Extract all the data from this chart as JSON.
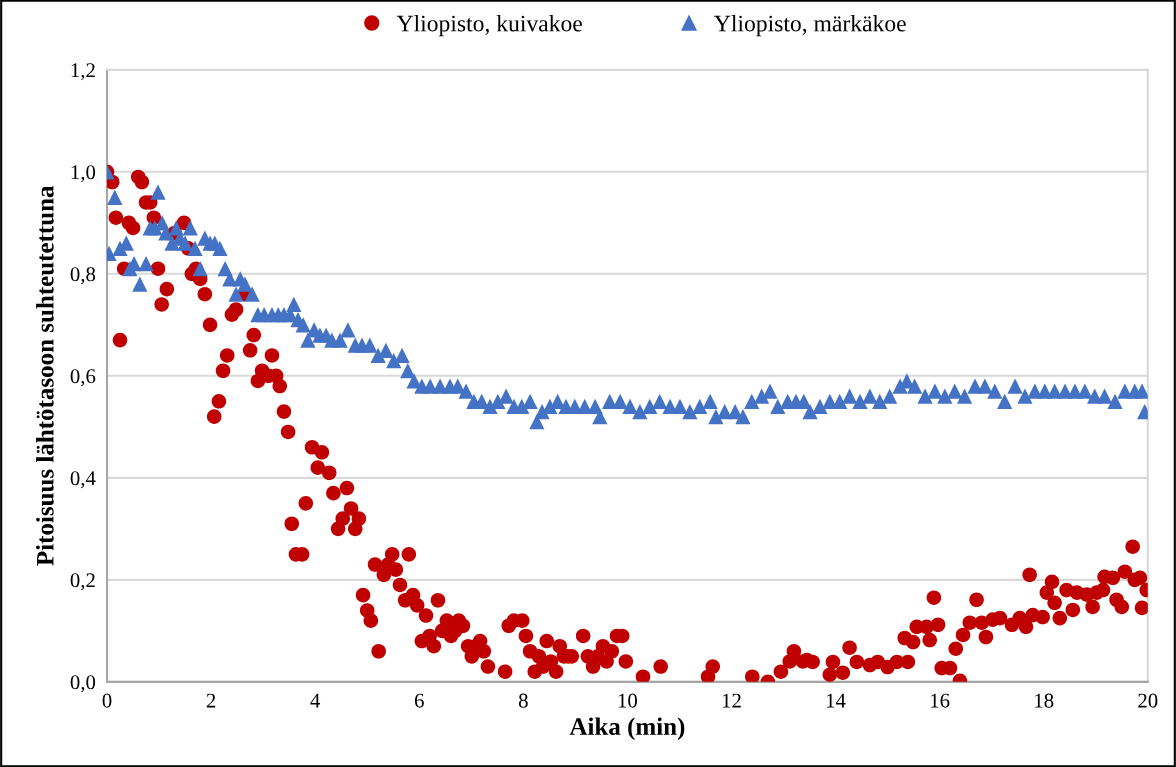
{
  "chart_data": {
    "type": "scatter",
    "xlabel": "Aika (min)",
    "ylabel": "Pitoisuus lähtötasoon suhteutettuna",
    "xlim": [
      0,
      20
    ],
    "xticks": [
      0,
      2,
      4,
      6,
      8,
      10,
      12,
      14,
      16,
      18,
      20
    ],
    "ylim": [
      0,
      1.2
    ],
    "yticks": [
      {
        "value": 0,
        "label": "0,0"
      },
      {
        "value": 0.2,
        "label": "0,2"
      },
      {
        "value": 0.4,
        "label": "0,4"
      },
      {
        "value": 0.6,
        "label": "0,6"
      },
      {
        "value": 0.8,
        "label": "0,8"
      },
      {
        "value": 1.0,
        "label": "1,0"
      },
      {
        "value": 1.2,
        "label": "1,2"
      }
    ],
    "grid": "y",
    "legend": "top",
    "series": [
      {
        "name": "Yliopisto, kuivakoe",
        "color": "#c00000",
        "marker": "circle",
        "x": [
          0,
          0.1,
          0.17,
          0.25,
          0.33,
          0.42,
          0.5,
          0.6,
          0.67,
          0.75,
          0.83,
          0.9,
          0.98,
          1.05,
          1.15,
          1.3,
          1.48,
          1.56,
          1.63,
          1.71,
          1.79,
          1.88,
          1.98,
          2.06,
          2.15,
          2.23,
          2.31,
          2.4,
          2.48,
          2.65,
          2.75,
          2.82,
          2.9,
          2.98,
          3.1,
          3.17,
          3.25,
          3.32,
          3.4,
          3.48,
          3.55,
          3.63,
          3.75,
          3.82,
          3.94,
          4.05,
          4.13,
          4.27,
          4.35,
          4.44,
          4.53,
          4.61,
          4.69,
          4.77,
          4.84,
          4.92,
          5.0,
          5.07,
          5.15,
          5.22,
          5.32,
          5.4,
          5.48,
          5.55,
          5.63,
          5.73,
          5.8,
          5.88,
          5.96,
          6.05,
          6.13,
          6.2,
          6.28,
          6.36,
          6.44,
          6.53,
          6.61,
          6.69,
          6.76,
          6.84,
          6.94,
          7.01,
          7.09,
          7.17,
          7.24,
          7.32,
          7.65,
          7.72,
          7.82,
          7.98,
          8.05,
          8.13,
          8.22,
          8.3,
          8.38,
          8.45,
          8.53,
          8.63,
          8.7,
          8.78,
          8.86,
          8.93,
          9.15,
          9.24,
          9.34,
          9.43,
          9.53,
          9.6,
          9.7,
          9.8,
          9.9,
          9.97,
          10.3,
          10.64,
          11.55,
          11.64,
          12.4,
          12.7,
          12.95,
          13.12,
          13.2,
          13.37,
          13.45,
          13.56,
          13.89,
          13.95,
          14.14,
          14.27,
          14.41,
          14.66,
          14.81,
          15.0,
          15.18,
          15.39,
          15.33,
          15.49,
          15.56,
          15.75,
          15.81,
          15.97,
          15.89,
          16.04,
          16.2,
          16.31,
          16.39,
          16.45,
          16.58,
          16.71,
          16.81,
          16.89,
          17.02,
          17.16,
          17.39,
          17.54,
          17.66,
          17.73,
          17.79,
          17.98,
          18.06,
          18.16,
          18.21,
          18.31,
          18.44,
          18.56,
          18.64,
          18.83,
          18.94,
          19.02,
          19.14,
          19.17,
          19.33,
          19.4,
          19.5,
          19.56,
          19.71,
          19.75,
          19.85,
          19.98,
          19.89
        ],
        "values": [
          1.0,
          0.98,
          0.91,
          0.67,
          0.81,
          0.9,
          0.89,
          0.99,
          0.98,
          0.94,
          0.94,
          0.91,
          0.81,
          0.74,
          0.77,
          0.88,
          0.9,
          0.85,
          0.8,
          0.81,
          0.79,
          0.76,
          0.7,
          0.52,
          0.55,
          0.61,
          0.64,
          0.72,
          0.73,
          0.76,
          0.65,
          0.68,
          0.59,
          0.61,
          0.6,
          0.64,
          0.6,
          0.58,
          0.53,
          0.49,
          0.31,
          0.25,
          0.25,
          0.35,
          0.46,
          0.42,
          0.45,
          0.41,
          0.37,
          0.3,
          0.32,
          0.38,
          0.34,
          0.3,
          0.32,
          0.17,
          0.14,
          0.12,
          0.23,
          0.06,
          0.21,
          0.23,
          0.25,
          0.22,
          0.19,
          0.16,
          0.25,
          0.17,
          0.15,
          0.08,
          0.13,
          0.09,
          0.07,
          0.16,
          0.1,
          0.12,
          0.09,
          0.1,
          0.12,
          0.11,
          0.07,
          0.05,
          0.07,
          0.08,
          0.06,
          0.03,
          0.02,
          0.11,
          0.12,
          0.12,
          0.09,
          0.06,
          0.02,
          0.05,
          0.03,
          0.08,
          0.04,
          0.02,
          0.07,
          0.05,
          0.05,
          0.05,
          0.09,
          0.05,
          0.03,
          0.05,
          0.07,
          0.04,
          0.06,
          0.09,
          0.09,
          0.04,
          0.01,
          0.03,
          0.01,
          0.03,
          0.01,
          0.0,
          0.02,
          0.04,
          0.06,
          0.04,
          0.043,
          0.039,
          0.014,
          0.039,
          0.018,
          0.067,
          0.039,
          0.033,
          0.039,
          0.029,
          0.039,
          0.039,
          0.086,
          0.078,
          0.108,
          0.108,
          0.082,
          0.112,
          0.165,
          0.027,
          0.027,
          0.065,
          0.002,
          0.092,
          0.116,
          0.161,
          0.116,
          0.088,
          0.122,
          0.125,
          0.112,
          0.125,
          0.108,
          0.21,
          0.131,
          0.127,
          0.175,
          0.196,
          0.155,
          0.125,
          0.18,
          0.141,
          0.175,
          0.171,
          0.147,
          0.175,
          0.18,
          0.206,
          0.204,
          0.161,
          0.147,
          0.216,
          0.265,
          0.2,
          0.204,
          0.18,
          0.145
        ]
      },
      {
        "name": "Yliopisto, märkäkoe",
        "color": "#4472c4",
        "marker": "triangle",
        "x": [
          0,
          0.04,
          0.15,
          0.25,
          0.37,
          0.44,
          0.52,
          0.63,
          0.75,
          0.83,
          0.92,
          0.98,
          1.06,
          1.13,
          1.25,
          1.33,
          1.4,
          1.5,
          1.6,
          1.69,
          1.79,
          1.88,
          1.98,
          2.07,
          2.17,
          2.27,
          2.36,
          2.48,
          2.56,
          2.65,
          2.79,
          2.9,
          3.02,
          3.17,
          3.29,
          3.4,
          3.52,
          3.59,
          3.67,
          3.77,
          3.86,
          3.98,
          4.09,
          4.21,
          4.32,
          4.48,
          4.63,
          4.77,
          4.9,
          5.05,
          5.21,
          5.36,
          5.51,
          5.67,
          5.78,
          5.9,
          6.05,
          6.21,
          6.4,
          6.59,
          6.74,
          6.9,
          7.05,
          7.2,
          7.36,
          7.51,
          7.67,
          7.82,
          7.97,
          8.13,
          8.26,
          8.36,
          8.51,
          8.66,
          8.82,
          8.99,
          9.18,
          9.38,
          9.47,
          9.66,
          9.86,
          10.05,
          10.24,
          10.43,
          10.62,
          10.82,
          11.01,
          11.2,
          11.39,
          11.59,
          11.7,
          11.87,
          12.07,
          12.22,
          12.39,
          12.58,
          12.74,
          12.89,
          13.08,
          13.24,
          13.39,
          13.51,
          13.7,
          13.89,
          14.08,
          14.27,
          14.47,
          14.66,
          14.85,
          15.04,
          15.24,
          15.37,
          15.52,
          15.72,
          15.91,
          16.1,
          16.29,
          16.48,
          16.68,
          16.87,
          17.06,
          17.25,
          17.45,
          17.64,
          17.83,
          18.02,
          18.21,
          18.41,
          18.6,
          18.79,
          18.98,
          19.17,
          19.37,
          19.56,
          19.75,
          19.89,
          19.94
        ],
        "values": [
          1.0,
          0.84,
          0.95,
          0.85,
          0.86,
          0.81,
          0.82,
          0.78,
          0.82,
          0.89,
          0.89,
          0.96,
          0.9,
          0.88,
          0.86,
          0.89,
          0.87,
          0.86,
          0.89,
          0.85,
          0.81,
          0.87,
          0.86,
          0.86,
          0.85,
          0.81,
          0.79,
          0.76,
          0.79,
          0.78,
          0.76,
          0.72,
          0.72,
          0.72,
          0.72,
          0.72,
          0.72,
          0.74,
          0.71,
          0.7,
          0.67,
          0.69,
          0.68,
          0.68,
          0.67,
          0.67,
          0.69,
          0.66,
          0.66,
          0.66,
          0.64,
          0.65,
          0.63,
          0.64,
          0.61,
          0.59,
          0.58,
          0.58,
          0.58,
          0.58,
          0.58,
          0.57,
          0.55,
          0.55,
          0.54,
          0.55,
          0.56,
          0.54,
          0.54,
          0.55,
          0.51,
          0.53,
          0.54,
          0.55,
          0.54,
          0.54,
          0.54,
          0.54,
          0.52,
          0.55,
          0.55,
          0.54,
          0.53,
          0.54,
          0.55,
          0.54,
          0.54,
          0.53,
          0.54,
          0.55,
          0.52,
          0.53,
          0.53,
          0.52,
          0.55,
          0.56,
          0.57,
          0.54,
          0.55,
          0.55,
          0.55,
          0.53,
          0.54,
          0.55,
          0.55,
          0.56,
          0.55,
          0.56,
          0.55,
          0.56,
          0.58,
          0.59,
          0.58,
          0.56,
          0.57,
          0.56,
          0.57,
          0.56,
          0.58,
          0.58,
          0.57,
          0.55,
          0.58,
          0.56,
          0.57,
          0.57,
          0.57,
          0.57,
          0.57,
          0.57,
          0.56,
          0.56,
          0.55,
          0.57,
          0.57,
          0.57,
          0.53
        ]
      }
    ]
  }
}
